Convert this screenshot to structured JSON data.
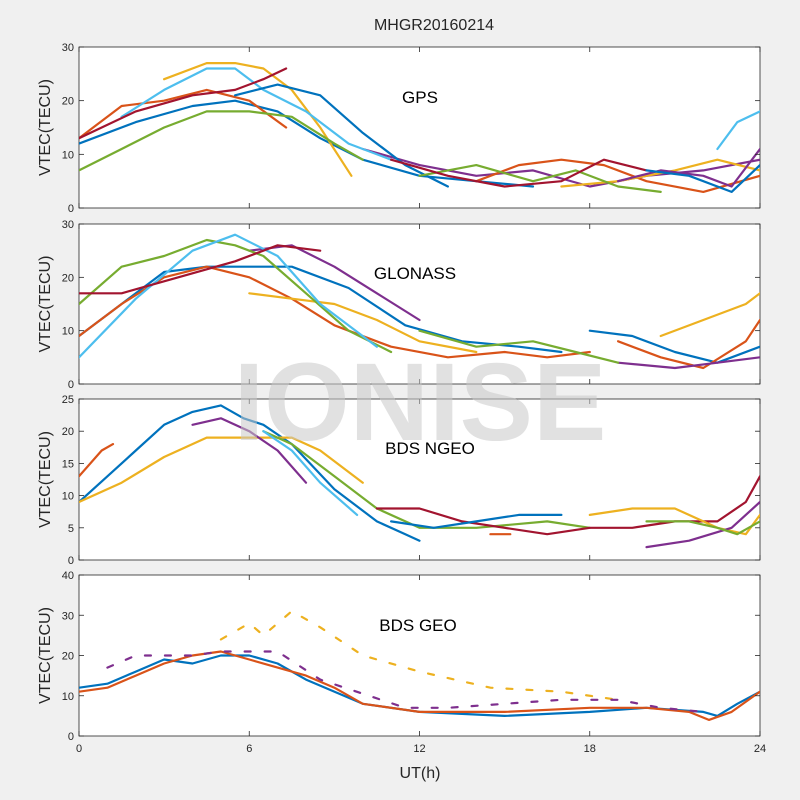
{
  "figure": {
    "title": "MHGR20160214",
    "xlabel": "UT(h)",
    "watermark": "IONISE"
  },
  "colors": [
    "#0072BD",
    "#D95319",
    "#EDB120",
    "#7E2F8E",
    "#77AC30",
    "#4DBEEE",
    "#A2142F"
  ],
  "chart_data": [
    {
      "type": "line",
      "name": "GPS",
      "ylabel": "VTEC(TECU)",
      "xlim": [
        0,
        24
      ],
      "ylim": [
        0,
        30
      ],
      "xticks": [
        0,
        6,
        12,
        18,
        24
      ],
      "yticks": [
        0,
        10,
        20,
        30
      ],
      "series": [
        {
          "x": [
            0,
            2,
            4,
            5.5,
            7,
            8.5,
            10,
            12,
            14,
            16
          ],
          "y": [
            12,
            16,
            19,
            20,
            18,
            13,
            9,
            6,
            5,
            4
          ]
        },
        {
          "x": [
            0,
            1.5,
            3,
            4.5,
            6,
            7.3
          ],
          "y": [
            13,
            19,
            20,
            22,
            20,
            15
          ]
        },
        {
          "x": [
            3,
            4.5,
            5.5,
            6.5,
            7.5,
            8.5,
            9.6
          ],
          "y": [
            24,
            27,
            27,
            26,
            22,
            15,
            6
          ]
        },
        {
          "x": [
            10,
            12,
            14,
            16,
            18,
            20,
            22,
            24
          ],
          "y": [
            11,
            8,
            6,
            7,
            4,
            6,
            7,
            9
          ]
        },
        {
          "x": [
            0,
            1.5,
            3,
            4.5,
            6,
            7.5,
            9,
            10
          ],
          "y": [
            7,
            11,
            15,
            18,
            18,
            17,
            12,
            9
          ]
        },
        {
          "x": [
            1.5,
            3,
            4.5,
            5.5,
            6.5,
            8,
            9.5,
            11
          ],
          "y": [
            17,
            22,
            26,
            26,
            22,
            18,
            12,
            9
          ]
        },
        {
          "x": [
            0,
            2,
            4,
            5.5,
            6.5,
            7.3
          ],
          "y": [
            13,
            18,
            21,
            22,
            24,
            26
          ]
        },
        {
          "x": [
            5.5,
            7,
            8.5,
            10,
            11.5,
            13
          ],
          "y": [
            21,
            23,
            21,
            14,
            8,
            4
          ]
        },
        {
          "x": [
            14,
            15.5,
            17,
            18.5,
            20,
            22,
            24
          ],
          "y": [
            5,
            8,
            9,
            8,
            5,
            3,
            6
          ]
        },
        {
          "x": [
            17,
            19,
            21,
            22.5,
            24
          ],
          "y": [
            4,
            5,
            7,
            9,
            7
          ]
        },
        {
          "x": [
            19,
            20.5,
            22,
            23,
            24
          ],
          "y": [
            5,
            7,
            6,
            4,
            11
          ]
        },
        {
          "x": [
            12,
            14,
            16,
            17.5,
            19,
            20.5
          ],
          "y": [
            6,
            8,
            5,
            7,
            4,
            3
          ]
        },
        {
          "x": [
            22.5,
            23.2,
            24
          ],
          "y": [
            11,
            16,
            18
          ]
        },
        {
          "x": [
            11,
            13,
            15,
            17,
            18.5,
            20
          ],
          "y": [
            9,
            6,
            4,
            5,
            9,
            7
          ]
        },
        {
          "x": [
            20,
            21.5,
            23,
            24
          ],
          "y": [
            7,
            6,
            3,
            8
          ]
        }
      ]
    },
    {
      "type": "line",
      "name": "GLONASS",
      "ylabel": "VTEC(TECU)",
      "xlim": [
        0,
        24
      ],
      "ylim": [
        0,
        30
      ],
      "xticks": [
        0,
        6,
        12,
        18,
        24
      ],
      "yticks": [
        0,
        10,
        20,
        30
      ],
      "series": [
        {
          "x": [
            0,
            1.5,
            3,
            4.5,
            6,
            7.5,
            9.5,
            11.5,
            13.5,
            15.5,
            17
          ],
          "y": [
            9,
            15,
            21,
            22,
            22,
            22,
            18,
            11,
            8,
            7,
            6
          ]
        },
        {
          "x": [
            0,
            1.5,
            3,
            4.5,
            6,
            7.5,
            9,
            11,
            13,
            15,
            16.5,
            18
          ],
          "y": [
            9,
            15,
            20,
            22,
            20,
            16,
            11,
            7,
            5,
            6,
            5,
            6
          ]
        },
        {
          "x": [
            6,
            7.5,
            9,
            10.5,
            12,
            14
          ],
          "y": [
            17,
            16,
            15,
            12,
            8,
            6
          ]
        },
        {
          "x": [
            6,
            7.5,
            9,
            10.5,
            12
          ],
          "y": [
            25,
            26,
            22,
            17,
            12
          ]
        },
        {
          "x": [
            0,
            1.5,
            3,
            4.5,
            5.5,
            6.5,
            8,
            9.5,
            11
          ],
          "y": [
            15,
            22,
            24,
            27,
            26,
            24,
            17,
            10,
            6
          ]
        },
        {
          "x": [
            0,
            2,
            4,
            5.5,
            7,
            8.5,
            10.5
          ],
          "y": [
            5,
            16,
            25,
            28,
            24,
            15,
            7
          ]
        },
        {
          "x": [
            0,
            1.5,
            3.5,
            5.5,
            7,
            8.5
          ],
          "y": [
            17,
            17,
            20,
            23,
            26,
            25
          ]
        },
        {
          "x": [
            18,
            19.5,
            21,
            22.5,
            24
          ],
          "y": [
            10,
            9,
            6,
            4,
            7
          ]
        },
        {
          "x": [
            19,
            20.5,
            22,
            23.5,
            24
          ],
          "y": [
            8,
            5,
            3,
            8,
            12
          ]
        },
        {
          "x": [
            20.5,
            22,
            23.5,
            24
          ],
          "y": [
            9,
            12,
            15,
            17
          ]
        },
        {
          "x": [
            19,
            21,
            22.5,
            24
          ],
          "y": [
            4,
            3,
            4,
            5
          ]
        },
        {
          "x": [
            12,
            14,
            16,
            17.5,
            19
          ],
          "y": [
            10,
            7,
            8,
            6,
            4
          ]
        }
      ]
    },
    {
      "type": "line",
      "name": "BDS NGEO",
      "ylabel": "VTEC(TECU)",
      "xlim": [
        0,
        24
      ],
      "ylim": [
        0,
        25
      ],
      "xticks": [
        0,
        6,
        12,
        18,
        24
      ],
      "yticks": [
        0,
        5,
        10,
        15,
        20,
        25
      ],
      "series": [
        {
          "x": [
            0,
            1,
            2,
            3,
            4,
            5,
            5.8,
            6.5,
            7.5,
            9,
            10.5,
            11.5,
            12
          ],
          "y": [
            9,
            13,
            17,
            21,
            23,
            24,
            22,
            21,
            18,
            11,
            6,
            4,
            3
          ]
        },
        {
          "x": [
            0,
            0.8,
            1.2
          ],
          "y": [
            13,
            17,
            18
          ]
        },
        {
          "x": [
            0,
            1.5,
            3,
            4.5,
            6,
            7.5,
            8.5,
            10
          ],
          "y": [
            9,
            12,
            16,
            19,
            19,
            19,
            17,
            12
          ]
        },
        {
          "x": [
            4,
            5,
            6,
            7,
            8
          ],
          "y": [
            21,
            22,
            20,
            17,
            12
          ]
        },
        {
          "x": [
            6.5,
            7.5,
            9,
            10.5,
            12,
            14,
            16.5,
            18
          ],
          "y": [
            20,
            18,
            13,
            8,
            5,
            5,
            6,
            5
          ]
        },
        {
          "x": [
            6.5,
            7.5,
            8.5,
            9.8
          ],
          "y": [
            20,
            17,
            12,
            7
          ]
        },
        {
          "x": [
            10.5,
            12,
            13.5,
            15,
            16.5,
            18,
            19.5,
            21,
            22.5,
            23.5,
            24
          ],
          "y": [
            8,
            8,
            6,
            5,
            4,
            5,
            5,
            6,
            6,
            9,
            13
          ]
        },
        {
          "x": [
            11,
            12.5,
            14,
            15.5,
            17
          ],
          "y": [
            6,
            5,
            6,
            7,
            7
          ]
        },
        {
          "x": [
            14.5,
            15.2
          ],
          "y": [
            4,
            4
          ]
        },
        {
          "x": [
            18,
            19.5,
            21,
            22.5,
            23.5,
            24
          ],
          "y": [
            7,
            8,
            8,
            5,
            4,
            7
          ]
        },
        {
          "x": [
            20,
            21.5,
            23,
            24
          ],
          "y": [
            2,
            3,
            5,
            9
          ]
        },
        {
          "x": [
            20,
            21.5,
            22.5,
            23.2,
            24
          ],
          "y": [
            6,
            6,
            5,
            4,
            6
          ]
        }
      ]
    },
    {
      "type": "line",
      "name": "BDS GEO",
      "ylabel": "VTEC(TECU)",
      "xlim": [
        0,
        24
      ],
      "ylim": [
        0,
        40
      ],
      "xticks": [
        0,
        6,
        12,
        18,
        24
      ],
      "yticks": [
        0,
        10,
        20,
        30,
        40
      ],
      "series": [
        {
          "x": [
            0,
            1,
            2,
            3,
            4,
            5,
            6,
            7,
            8,
            10,
            12,
            15,
            18,
            20,
            22,
            22.5,
            23.2,
            24
          ],
          "y": [
            12,
            13,
            16,
            19,
            18,
            20,
            20,
            18,
            14,
            8,
            6,
            5,
            6,
            7,
            6,
            5,
            8,
            11
          ]
        },
        {
          "x": [
            0,
            1,
            2,
            3,
            4,
            5,
            6,
            7,
            8,
            9,
            10,
            12,
            15,
            18,
            20,
            21.5,
            22.2,
            23,
            24
          ],
          "y": [
            11,
            12,
            15,
            18,
            20,
            21,
            19,
            17,
            15,
            12,
            8,
            6,
            6,
            7,
            7,
            6,
            4,
            6,
            11
          ]
        },
        {
          "x": [
            5,
            6,
            6.5,
            7.5,
            8.5,
            10,
            12,
            14.5,
            17,
            19
          ],
          "y": [
            24,
            28,
            25,
            31,
            27,
            20,
            16,
            12,
            11,
            9
          ]
        },
        {
          "x": [
            1,
            2,
            4,
            5,
            7,
            8.5,
            11.5,
            13,
            15,
            17,
            19,
            20.5,
            22
          ],
          "y": [
            17,
            20,
            20,
            21,
            21,
            14,
            7,
            7,
            8,
            9,
            9,
            7,
            6
          ]
        }
      ]
    }
  ]
}
